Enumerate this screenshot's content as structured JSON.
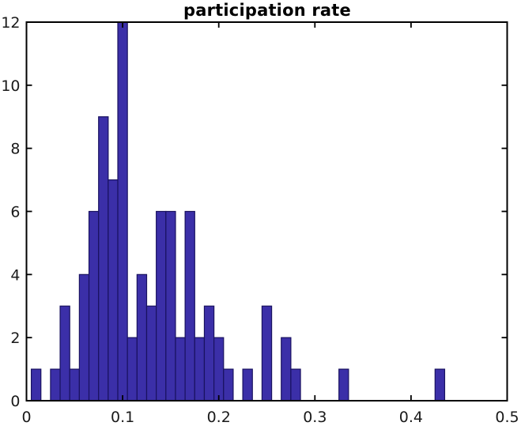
{
  "chart_data": {
    "type": "bar",
    "subtype": "histogram",
    "title": "participation rate",
    "xlabel": "",
    "ylabel": "",
    "bin_width": 0.01,
    "bin_centers": [
      0.01,
      0.02,
      0.03,
      0.04,
      0.05,
      0.06,
      0.07,
      0.08,
      0.09,
      0.1,
      0.11,
      0.12,
      0.13,
      0.14,
      0.15,
      0.16,
      0.17,
      0.18,
      0.19,
      0.2,
      0.21,
      0.22,
      0.23,
      0.24,
      0.25,
      0.26,
      0.27,
      0.28,
      0.29,
      0.3,
      0.31,
      0.32,
      0.33,
      0.34,
      0.35,
      0.36,
      0.37,
      0.38,
      0.39,
      0.4,
      0.41,
      0.42,
      0.43
    ],
    "values": [
      1,
      0,
      1,
      3,
      1,
      4,
      6,
      9,
      7,
      12,
      2,
      4,
      3,
      6,
      6,
      2,
      6,
      2,
      3,
      2,
      1,
      0,
      1,
      0,
      3,
      0,
      2,
      1,
      0,
      0,
      0,
      0,
      1,
      0,
      0,
      0,
      0,
      0,
      0,
      0,
      0,
      0,
      1
    ],
    "xlim": [
      0,
      0.5
    ],
    "ylim": [
      0,
      12
    ],
    "xticks": [
      0,
      0.1,
      0.2,
      0.3,
      0.4,
      0.5
    ],
    "xtick_labels": [
      "0",
      "0.1",
      "0.2",
      "0.3",
      "0.4",
      "0.5"
    ],
    "yticks": [
      0,
      2,
      4,
      6,
      8,
      10,
      12
    ],
    "ytick_labels": [
      "0",
      "2",
      "4",
      "6",
      "8",
      "10",
      "12"
    ],
    "grid": false,
    "legend": null,
    "tick_direction": "in",
    "box": true,
    "colors": {
      "bar_fill": "#3B2FA8",
      "bar_edge": "#191260",
      "axis": "#000000",
      "text": "#1a1a1a",
      "background": "#ffffff"
    }
  }
}
